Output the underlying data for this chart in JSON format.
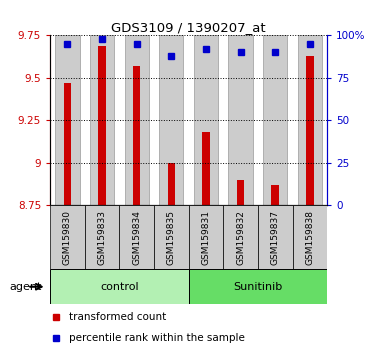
{
  "title": "GDS3109 / 1390207_at",
  "samples": [
    "GSM159830",
    "GSM159833",
    "GSM159834",
    "GSM159835",
    "GSM159831",
    "GSM159832",
    "GSM159837",
    "GSM159838"
  ],
  "red_values": [
    9.47,
    9.69,
    9.57,
    9.0,
    9.18,
    8.9,
    8.87,
    9.63
  ],
  "blue_values": [
    95,
    98,
    95,
    88,
    92,
    90,
    90,
    95
  ],
  "ylim_left": [
    8.75,
    9.75
  ],
  "ylim_right": [
    0,
    100
  ],
  "yticks_left": [
    8.75,
    9.0,
    9.25,
    9.5,
    9.75
  ],
  "yticks_right": [
    0,
    25,
    50,
    75,
    100
  ],
  "ytick_labels_left": [
    "8.75",
    "9",
    "9.25",
    "9.5",
    "9.75"
  ],
  "ytick_labels_right": [
    "0",
    "25",
    "50",
    "75",
    "100%"
  ],
  "groups": [
    {
      "label": "control",
      "start": 0,
      "end": 4,
      "color": "#b3f0b3"
    },
    {
      "label": "Sunitinib",
      "start": 4,
      "end": 8,
      "color": "#66dd66"
    }
  ],
  "red_color": "#cc0000",
  "blue_color": "#0000cc",
  "bar_bg_color": "#cccccc",
  "left_axis_color": "#cc0000",
  "right_axis_color": "#0000cc",
  "legend_red": "transformed count",
  "legend_blue": "percentile rank within the sample",
  "bar_width": 0.7,
  "red_bar_width": 0.22
}
